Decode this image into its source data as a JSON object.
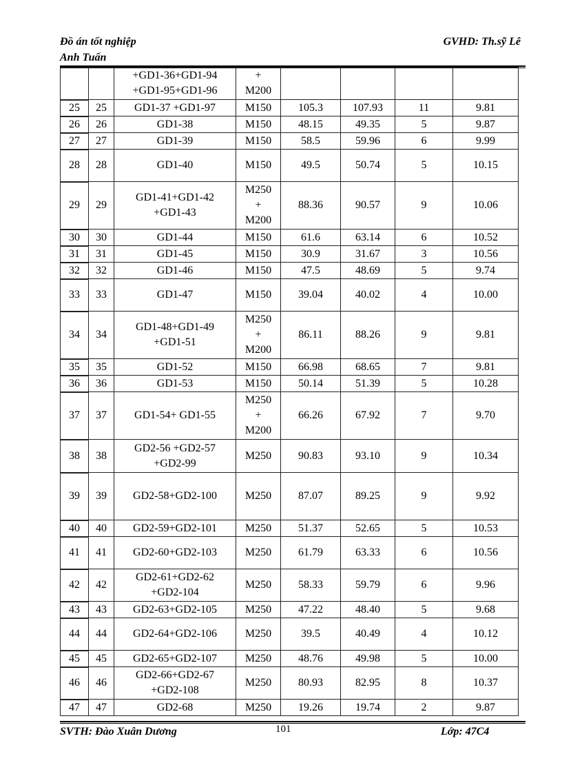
{
  "header": {
    "left_line1": "Đồ án tốt nghiệp",
    "left_line2": "Anh  Tuấn",
    "right": "GVHD:  Th.sỹ Lê"
  },
  "footer": {
    "left": "SVTH:  Đào Xuân Dương",
    "page_number": "101",
    "right": "Lớp: 47C4"
  },
  "table": {
    "rows": [
      [
        "",
        "",
        "+GD1-36+GD1-94\n+GD1-95+GD1-96",
        "+\nM200",
        "",
        "",
        "",
        ""
      ],
      [
        "25",
        "25",
        "GD1-37 +GD1-97",
        "M150",
        "105.3",
        "107.93",
        "11",
        "9.81"
      ],
      [
        "26",
        "26",
        "GD1-38",
        "M150",
        "48.15",
        "49.35",
        "5",
        "9.87"
      ],
      [
        "27",
        "27",
        "GD1-39",
        "M150",
        "58.5",
        "59.96",
        "6",
        "9.99"
      ],
      [
        "28",
        "28",
        "GD1-40",
        "M150",
        "49.5",
        "50.74",
        "5",
        "10.15"
      ],
      [
        "29",
        "29",
        "GD1-41+GD1-42\n+GD1-43",
        "M250\n+\nM200",
        "88.36",
        "90.57",
        "9",
        "10.06"
      ],
      [
        "30",
        "30",
        "GD1-44",
        "M150",
        "61.6",
        "63.14",
        "6",
        "10.52"
      ],
      [
        "31",
        "31",
        "GD1-45",
        "M150",
        "30.9",
        "31.67",
        "3",
        "10.56"
      ],
      [
        "32",
        "32",
        "GD1-46",
        "M150",
        "47.5",
        "48.69",
        "5",
        "9.74"
      ],
      [
        "33",
        "33",
        "GD1-47",
        "M150",
        "39.04",
        "40.02",
        "4",
        "10.00"
      ],
      [
        "34",
        "34",
        "GD1-48+GD1-49\n+GD1-51",
        "M250\n+\nM200",
        "86.11",
        "88.26",
        "9",
        "9.81"
      ],
      [
        "35",
        "35",
        "GD1-52",
        "M150",
        "66.98",
        "68.65",
        "7",
        "9.81"
      ],
      [
        "36",
        "36",
        "GD1-53",
        "M150",
        "50.14",
        "51.39",
        "5",
        "10.28"
      ],
      [
        "37",
        "37",
        "GD1-54+ GD1-55",
        "M250\n+\nM200",
        "66.26",
        "67.92",
        "7",
        "9.70"
      ],
      [
        "38",
        "38",
        "GD2-56 +GD2-57\n+GD2-99",
        "M250",
        "90.83",
        "93.10",
        "9",
        "10.34"
      ],
      [
        "39",
        "39",
        "GD2-58+GD2-100",
        "M250",
        "87.07",
        "89.25",
        "9",
        "9.92"
      ],
      [
        "40",
        "40",
        "GD2-59+GD2-101",
        "M250",
        "51.37",
        "52.65",
        "5",
        "10.53"
      ],
      [
        "41",
        "41",
        "GD2-60+GD2-103",
        "M250",
        "61.79",
        "63.33",
        "6",
        "10.56"
      ],
      [
        "42",
        "42",
        "GD2-61+GD2-62\n+GD2-104",
        "M250",
        "58.33",
        "59.79",
        "6",
        "9.96"
      ],
      [
        "43",
        "43",
        "GD2-63+GD2-105",
        "M250",
        "47.22",
        "48.40",
        "5",
        "9.68"
      ],
      [
        "44",
        "44",
        "GD2-64+GD2-106",
        "M250",
        "39.5",
        "40.49",
        "4",
        "10.12"
      ],
      [
        "45",
        "45",
        "GD2-65+GD2-107",
        "M250",
        "48.76",
        "49.98",
        "5",
        "10.00"
      ],
      [
        "46",
        "46",
        "GD2-66+GD2-67\n+GD2-108",
        "M250",
        "80.93",
        "82.95",
        "8",
        "10.37"
      ],
      [
        "47",
        "47",
        "GD2-68",
        "M250",
        "19.26",
        "19.74",
        "2",
        "9.87"
      ]
    ]
  }
}
